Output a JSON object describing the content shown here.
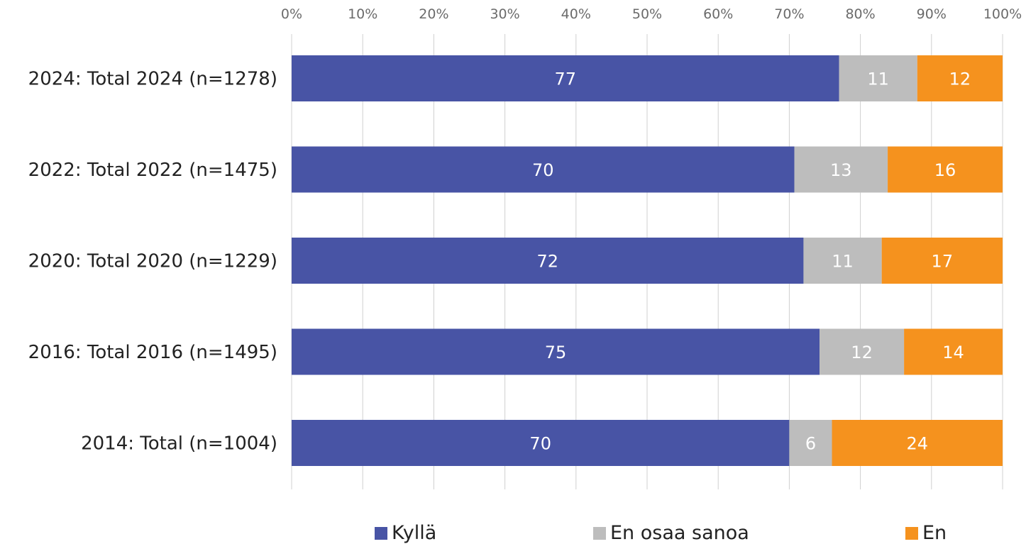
{
  "chart_data": {
    "type": "bar",
    "orientation": "horizontal",
    "stacked": true,
    "percent_axis": true,
    "title": "",
    "xlabel": "",
    "ylabel": "",
    "xlim": [
      0,
      100
    ],
    "x_ticks": [
      "0%",
      "10%",
      "20%",
      "30%",
      "40%",
      "50%",
      "60%",
      "70%",
      "80%",
      "90%",
      "100%"
    ],
    "x_axis_position": "top",
    "grid": true,
    "legend_position": "bottom",
    "categories": [
      "2024: Total 2024 (n=1278)",
      "2022: Total 2022 (n=1475)",
      "2020: Total 2020 (n=1229)",
      "2016: Total 2016 (n=1495)",
      "2014: Total (n=1004)"
    ],
    "series": [
      {
        "name": "Kyllä",
        "color": "#4854a5",
        "values": [
          77,
          70,
          72,
          75,
          70
        ],
        "labels": [
          "77",
          "70",
          "72",
          "75",
          "70"
        ]
      },
      {
        "name": "En osaa sanoa",
        "color": "#bdbdbd",
        "values": [
          11,
          13,
          11,
          12,
          6
        ],
        "labels": [
          "11",
          "13",
          "11",
          "12",
          "6"
        ]
      },
      {
        "name": "En",
        "color": "#f5921e",
        "values": [
          12,
          16,
          17,
          14,
          24
        ],
        "labels": [
          "12",
          "16",
          "17",
          "14",
          "24"
        ]
      }
    ]
  }
}
